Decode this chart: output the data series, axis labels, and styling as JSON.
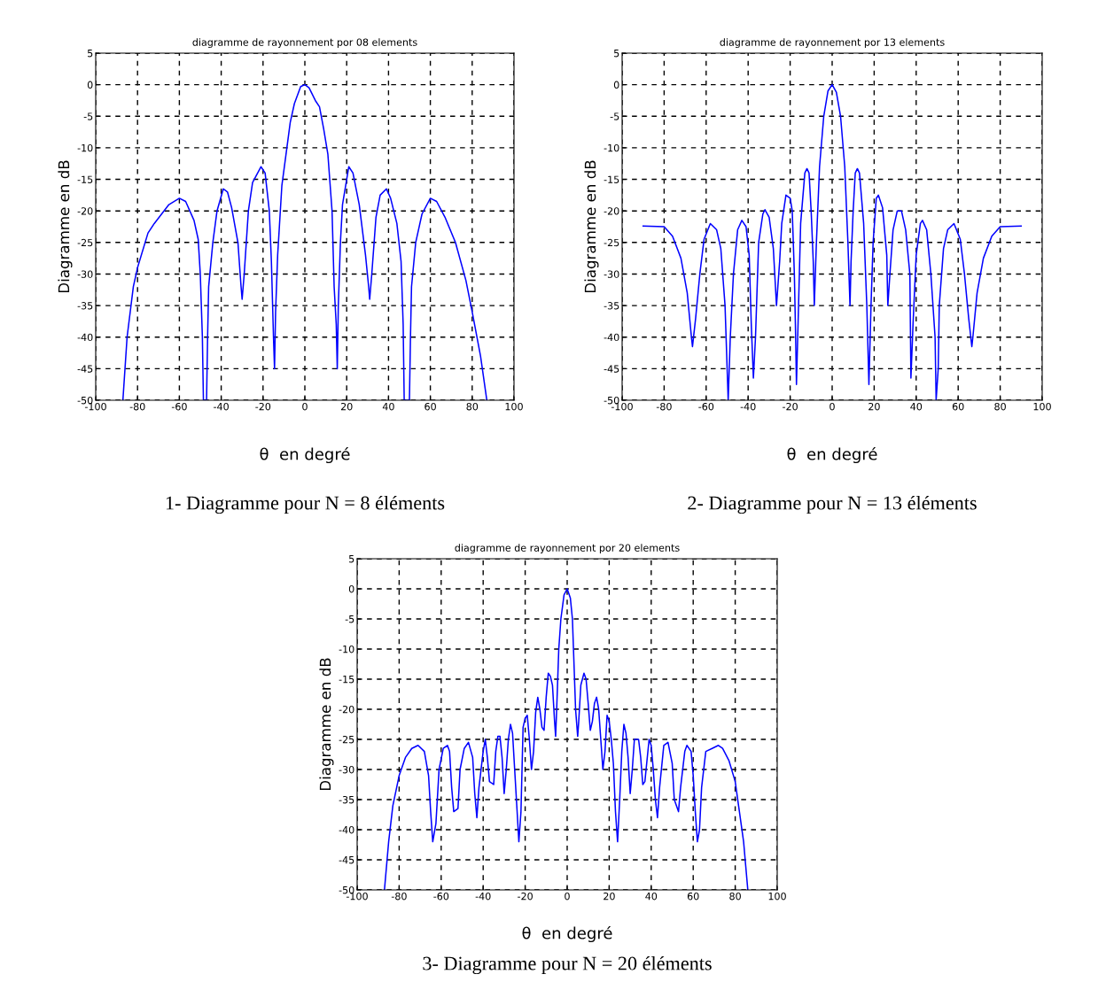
{
  "chart_data": [
    {
      "type": "line",
      "title": "diagramme de rayonnement por 08 elements",
      "xlabel": "θ  en degré",
      "ylabel": "Diagramme en dB",
      "annotations": [
        "1- Diagramme pour N = 8 éléments"
      ],
      "xlim": [
        -100,
        100
      ],
      "xticks": [
        -100,
        -80,
        -60,
        -40,
        -20,
        0,
        20,
        40,
        60,
        80,
        100
      ],
      "ylim": [
        -50,
        5
      ],
      "yticks": [
        -50,
        -45,
        -40,
        -35,
        -30,
        -25,
        -20,
        -15,
        -10,
        -5,
        0,
        5
      ],
      "grid": true,
      "line_style": "solid",
      "series": [
        {
          "color": "#0000ff",
          "x": [
            -87,
            -85,
            -82,
            -80,
            -75,
            -72,
            -65,
            -60,
            -57,
            -53,
            -51,
            -50,
            -49,
            -48.5,
            -47,
            -46.5,
            -46,
            -44,
            -42,
            -39,
            -37,
            -35,
            -32,
            -30.5,
            -30,
            -29,
            -27,
            -25,
            -21,
            -19,
            -17,
            -16,
            -15,
            -14.5,
            -14,
            -13,
            -11,
            -9,
            -7,
            -5,
            -2,
            0,
            2,
            5,
            7,
            9,
            11,
            13,
            14,
            15,
            15.5,
            16,
            17,
            18,
            21,
            23,
            26,
            29,
            30.5,
            31,
            32,
            34,
            36,
            39,
            41,
            44,
            46,
            47,
            47.5,
            50,
            50.5,
            51,
            53,
            56,
            60,
            63,
            67,
            72,
            77,
            80,
            84,
            87
          ],
          "values": [
            -50,
            -40,
            -32,
            -29,
            -23.5,
            -22,
            -19,
            -18,
            -18.5,
            -21.5,
            -24.5,
            -30,
            -40,
            -50,
            -50,
            -40,
            -32,
            -25,
            -20,
            -16.5,
            -17,
            -19.5,
            -25,
            -32,
            -34,
            -30,
            -20,
            -15.5,
            -13,
            -14,
            -20,
            -28,
            -40,
            -45,
            -36,
            -27,
            -16,
            -11,
            -6,
            -3,
            -0.3,
            0,
            -0.5,
            -2.5,
            -3.5,
            -7,
            -11,
            -20,
            -32,
            -38,
            -45,
            -35,
            -25,
            -19,
            -13,
            -14,
            -19,
            -27,
            -32,
            -34,
            -30,
            -21,
            -17.5,
            -16.5,
            -18,
            -22,
            -28,
            -38,
            -50,
            -50,
            -40,
            -32,
            -25,
            -20.5,
            -18,
            -18.5,
            -21,
            -25,
            -31,
            -36,
            -43,
            -50
          ]
        }
      ]
    },
    {
      "type": "line",
      "title": "diagramme de rayonnement por 13 elements",
      "xlabel": "θ  en degré",
      "ylabel": "Diagramme en dB",
      "annotations": [
        "2- Diagramme pour N = 13 éléments"
      ],
      "xlim": [
        -100,
        100
      ],
      "xticks": [
        -100,
        -80,
        -60,
        -40,
        -20,
        0,
        20,
        40,
        60,
        80,
        100
      ],
      "ylim": [
        -50,
        5
      ],
      "yticks": [
        -50,
        -45,
        -40,
        -35,
        -30,
        -25,
        -20,
        -15,
        -10,
        -5,
        0,
        5
      ],
      "grid": true,
      "line_style": "solid",
      "series": [
        {
          "color": "#0000ff",
          "x": [
            -90,
            -80,
            -76,
            -72,
            -69,
            -67,
            -66.5,
            -65,
            -63,
            -61,
            -58,
            -55,
            -53,
            -51,
            -50,
            -49.5,
            -48.5,
            -47,
            -45,
            -43,
            -41,
            -39.5,
            -38.5,
            -37.5,
            -36.5,
            -35,
            -33,
            -32,
            -30,
            -28,
            -27,
            -26.5,
            -25,
            -24,
            -22,
            -20,
            -19,
            -18,
            -17.5,
            -17,
            -16,
            -15,
            -13,
            -12,
            -11,
            -10,
            -9,
            -8.5,
            -7.5,
            -6,
            -4,
            -2,
            0,
            2,
            4,
            6,
            7.5,
            8.5,
            9,
            10,
            11,
            12,
            13,
            15,
            16.5,
            17.5,
            18.5,
            19.5,
            21,
            22,
            24,
            26,
            26.5,
            27.5,
            29,
            31,
            33,
            35,
            37,
            37.5,
            38.5,
            40,
            42,
            43,
            45,
            47,
            49,
            49.5,
            50.5,
            51,
            53,
            55,
            58,
            61,
            63,
            65,
            66.5,
            67,
            69,
            72,
            76,
            80,
            90
          ],
          "values": [
            -22.4,
            -22.5,
            -24,
            -27.5,
            -33,
            -40,
            -41.5,
            -37,
            -30,
            -24.5,
            -22,
            -23,
            -26,
            -35,
            -45,
            -50,
            -40,
            -30,
            -23,
            -21.5,
            -22.5,
            -27,
            -38,
            -46.5,
            -40,
            -25,
            -20.5,
            -19.8,
            -21,
            -26,
            -32,
            -35,
            -28,
            -22,
            -17.5,
            -18,
            -20,
            -30,
            -38,
            -47.5,
            -35,
            -22,
            -14,
            -13.3,
            -14,
            -20,
            -28,
            -35,
            -25,
            -13,
            -5,
            -1,
            0,
            -1.2,
            -5,
            -13,
            -25,
            -35,
            -28,
            -20,
            -14,
            -13.3,
            -14,
            -22,
            -35,
            -47.5,
            -35,
            -25,
            -18,
            -17.5,
            -19.5,
            -27,
            -35,
            -30,
            -23,
            -20,
            -20,
            -23,
            -30,
            -46.5,
            -38,
            -27,
            -22,
            -21.5,
            -23,
            -30,
            -40,
            -50,
            -45,
            -35,
            -26,
            -23,
            -22,
            -24.5,
            -30,
            -37,
            -41.5,
            -40,
            -33,
            -27.5,
            -24,
            -22.5,
            -22.4
          ]
        }
      ]
    },
    {
      "type": "line",
      "title": "diagramme de rayonnement por 20 elements",
      "xlabel": "θ  en degré",
      "ylabel": "Diagramme en dB",
      "annotations": [
        "3- Diagramme pour N = 20 éléments"
      ],
      "xlim": [
        -100,
        100
      ],
      "xticks": [
        -100,
        -80,
        -60,
        -40,
        -20,
        0,
        20,
        40,
        60,
        80,
        100
      ],
      "ylim": [
        -50,
        5
      ],
      "yticks": [
        -50,
        -45,
        -40,
        -35,
        -30,
        -25,
        -20,
        -15,
        -10,
        -5,
        0,
        5
      ],
      "grid": true,
      "line_style": "solid",
      "series": [
        {
          "color": "#0000ff",
          "x": [
            -87,
            -85,
            -83,
            -80,
            -77,
            -74,
            -71,
            -68,
            -66,
            -65,
            -64,
            -62.5,
            -61,
            -59,
            -57,
            -56,
            -55,
            -54,
            -52,
            -51,
            -49,
            -47,
            -45,
            -44,
            -43,
            -42,
            -40,
            -39,
            -38,
            -37,
            -35,
            -34,
            -33,
            -32,
            -31,
            -30,
            -29,
            -28,
            -27,
            -26,
            -25,
            -24,
            -23,
            -22,
            -21,
            -20,
            -19,
            -18,
            -17,
            -16,
            -15,
            -14,
            -13,
            -12,
            -11,
            -10,
            -9,
            -8,
            -7,
            -6,
            -5.5,
            -5,
            -4,
            -3,
            -1.5,
            0,
            1.5,
            2.5,
            3,
            4,
            5,
            5.5,
            6.5,
            8,
            9,
            10,
            11,
            12,
            13,
            14,
            15,
            16,
            17,
            18,
            19,
            20,
            21,
            22,
            23,
            24,
            25,
            26,
            27,
            28,
            29,
            30,
            31,
            32,
            34,
            35,
            36,
            37,
            39,
            40,
            41,
            42,
            43,
            44,
            46,
            48,
            50,
            51,
            53,
            54,
            56,
            57,
            59,
            60,
            61,
            62,
            63,
            64,
            66,
            69,
            72,
            74,
            77,
            80,
            82,
            84,
            85,
            86
          ],
          "values": [
            -50,
            -42,
            -36,
            -31,
            -28,
            -26.5,
            -26,
            -27,
            -31,
            -37,
            -42,
            -39,
            -30,
            -26.5,
            -26,
            -27,
            -33,
            -37,
            -36.5,
            -30,
            -26.5,
            -25.5,
            -28,
            -34,
            -38,
            -33,
            -27,
            -25,
            -28,
            -32,
            -32.5,
            -27,
            -24.5,
            -24.5,
            -28,
            -34,
            -30,
            -25,
            -22.5,
            -24,
            -30,
            -36,
            -42,
            -37,
            -23,
            -21.5,
            -21,
            -25,
            -30,
            -27,
            -20.5,
            -18,
            -20,
            -23,
            -23.5,
            -18,
            -14,
            -14.5,
            -16,
            -22,
            -24.5,
            -20,
            -10,
            -5,
            -1,
            0,
            -1.5,
            -5,
            -10,
            -20,
            -24.5,
            -22,
            -16,
            -14,
            -15,
            -19,
            -23.5,
            -22,
            -19,
            -18,
            -20,
            -25,
            -30,
            -27,
            -21,
            -22,
            -25,
            -29,
            -37,
            -42,
            -35,
            -27,
            -22.5,
            -24,
            -28,
            -34,
            -30,
            -25,
            -25,
            -28,
            -32.5,
            -32,
            -25,
            -26,
            -30,
            -35,
            -38,
            -33,
            -26,
            -25.5,
            -29,
            -35,
            -37,
            -33,
            -27,
            -26,
            -27,
            -31,
            -37,
            -42,
            -40,
            -33,
            -27,
            -26.5,
            -26,
            -26.5,
            -28.5,
            -32,
            -37,
            -42,
            -46,
            -50
          ]
        }
      ]
    }
  ]
}
